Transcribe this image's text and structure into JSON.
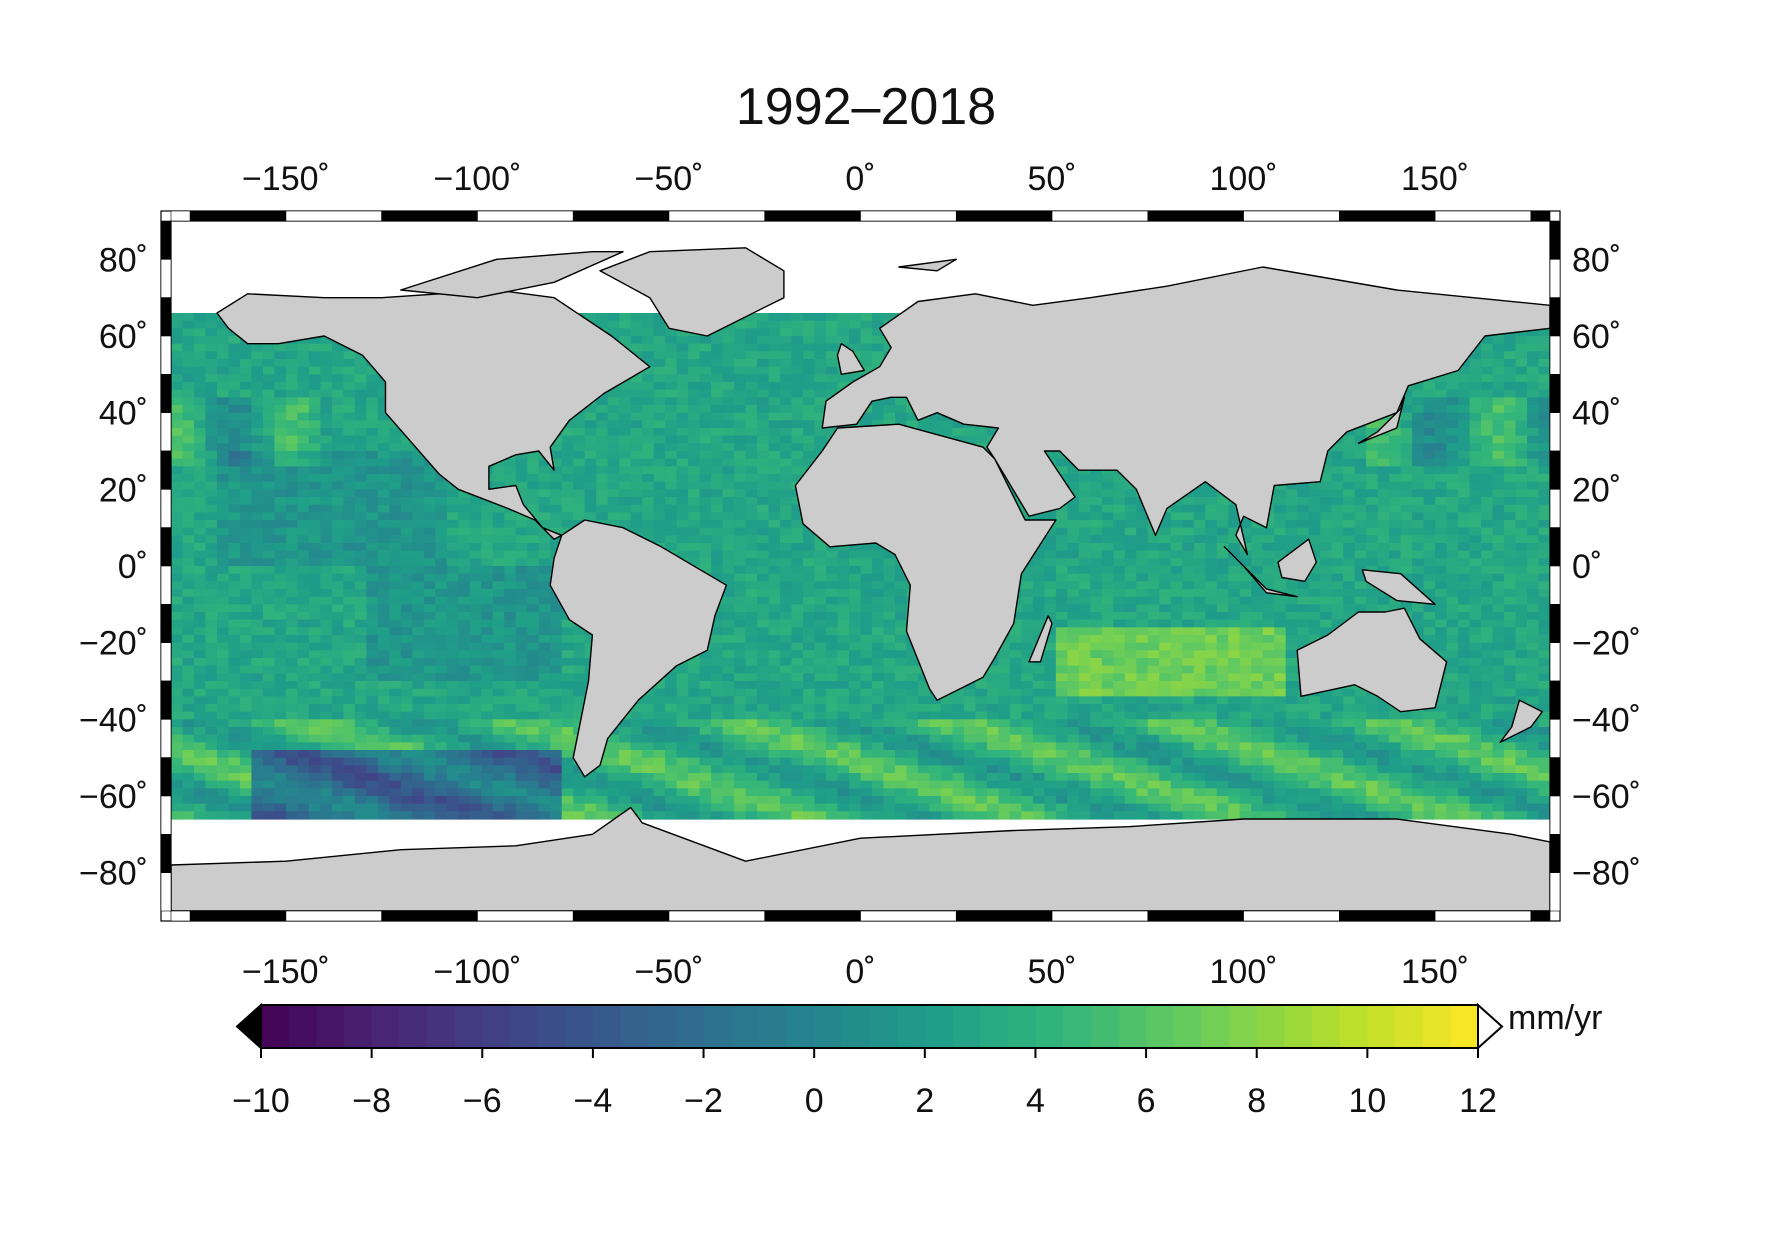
{
  "title": "1992–2018",
  "map": {
    "lon_ticks": [
      -150,
      -100,
      -50,
      0,
      50,
      100,
      150
    ],
    "lat_ticks": [
      80,
      60,
      40,
      20,
      0,
      -20,
      -40,
      -60,
      -80
    ],
    "lon_range": [
      -180,
      180
    ],
    "lat_range": [
      -90,
      90
    ],
    "data_lat_range": [
      -66,
      66
    ],
    "degree_symbol": "˚",
    "land_color": "#cccccc",
    "ocean_colormap": "viridis",
    "frame": "black-white alternating every 25° (lon) / 10° (lat)"
  },
  "colorbar": {
    "unit": "mm/yr",
    "min": -10,
    "max": 12,
    "ticks": [
      -10,
      -8,
      -6,
      -4,
      -2,
      0,
      2,
      4,
      6,
      8,
      10,
      12
    ],
    "step": 0.5,
    "extend_min_color": "#000000",
    "extend_max_color": "#ffffff",
    "colors": [
      "#440154",
      "#482878",
      "#3e4989",
      "#31688e",
      "#26828e",
      "#1f9e89",
      "#35b779",
      "#6ece58",
      "#b5de2b",
      "#fde725"
    ]
  }
}
